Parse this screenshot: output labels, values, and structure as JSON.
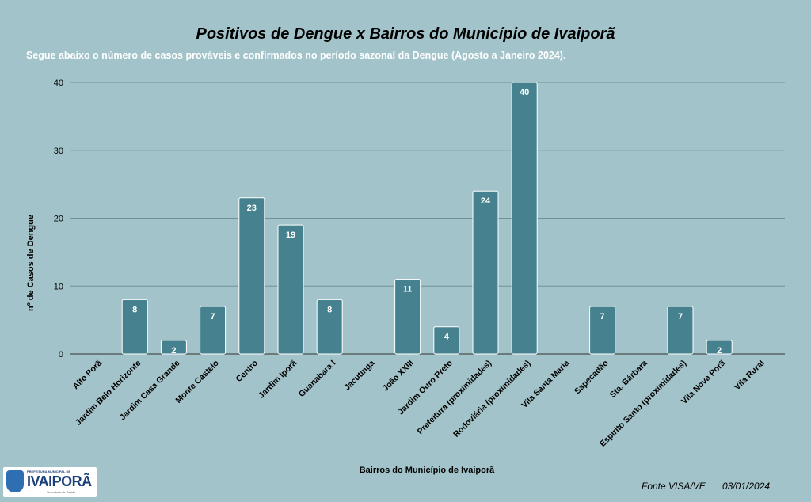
{
  "chart_data": {
    "type": "bar",
    "title": "Positivos de Dengue x Bairros do Município de Ivaiporã",
    "subtitle": "Segue abaixo o número de casos prováveis e confirmados no período sazonal da Dengue (Agosto a Janeiro 2024).",
    "xlabel": "Bairros do Município de Ivaiporã",
    "ylabel": "nº de Casos de  Dengue",
    "ylim": [
      0,
      40
    ],
    "yticks": [
      0,
      10,
      20,
      30,
      40
    ],
    "grid": true,
    "bar_color": "#45818e",
    "categories": [
      "Alto Porã",
      "Jardim Belo Horizonte",
      "Jardim Casa Grande",
      "Monte Castelo",
      "Centro",
      "Jardim Iporã",
      "Guanabara I",
      "Jacutinga",
      "João XXIII",
      "Jardim Ouro Preto",
      "Prefeitura (proximidades)",
      "Rodoviária (proximidades)",
      "Vila Santa Maria",
      "Sapecadão",
      "Sta. Bárbara",
      "Espírito Santo (proximidades)",
      "Vila Nova Porã",
      "Vila Rural"
    ],
    "values": [
      0,
      8,
      2,
      7,
      23,
      19,
      8,
      0,
      11,
      4,
      24,
      40,
      0,
      7,
      0,
      7,
      2,
      0
    ]
  },
  "footer": {
    "source": "Fonte VISA/VE",
    "date": "03/01/2024",
    "logo": {
      "top": "PREFEITURA MUNICIPAL DE",
      "name": "IVAIPORÃ",
      "sub": "Secretaria de Saúde"
    }
  }
}
